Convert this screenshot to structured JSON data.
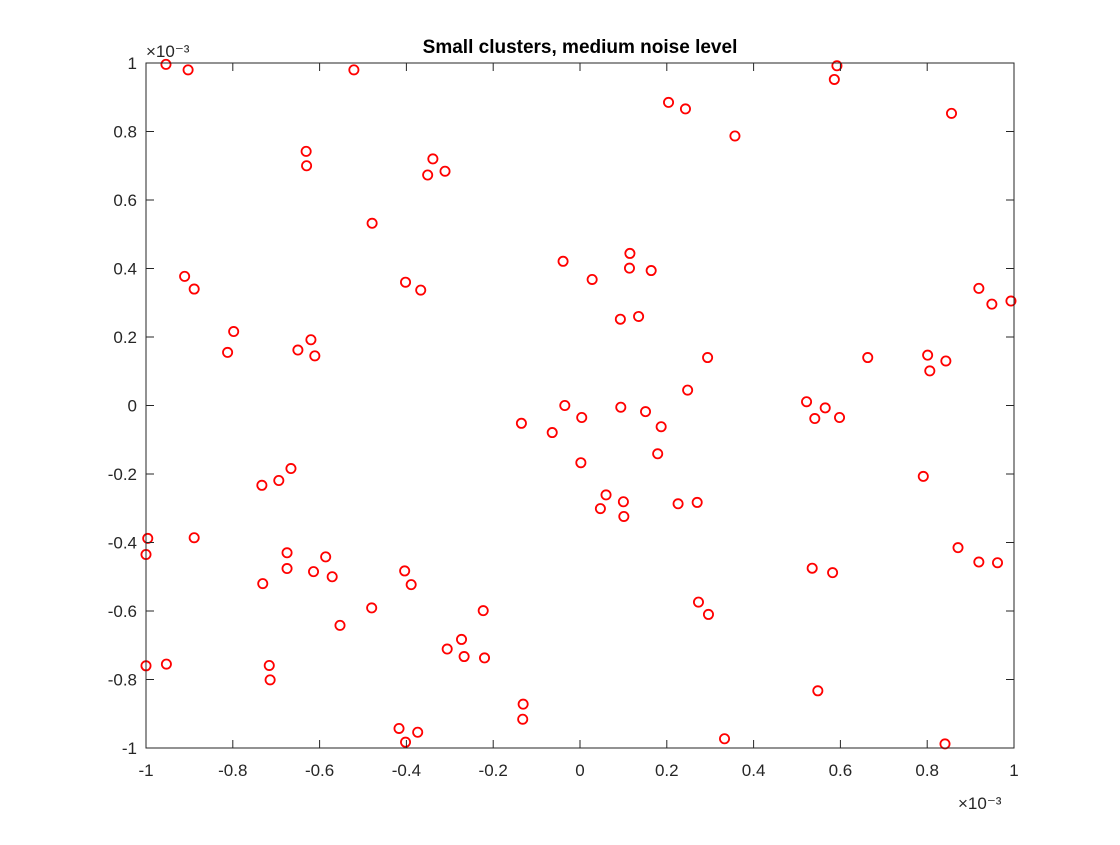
{
  "chart_data": {
    "type": "scatter",
    "title": "Small clusters, medium noise level",
    "xlabel": "",
    "ylabel": "",
    "xlim": [
      -1,
      1
    ],
    "ylim": [
      -1,
      1
    ],
    "x_exponent_label": "×10⁻³",
    "y_exponent_label": "×10⁻³",
    "x_ticks": [
      -1,
      -0.8,
      -0.6,
      -0.4,
      -0.2,
      0,
      0.2,
      0.4,
      0.6,
      0.8,
      1
    ],
    "y_ticks": [
      -1,
      -0.8,
      -0.6,
      -0.4,
      -0.2,
      0,
      0.2,
      0.4,
      0.6,
      0.8,
      1
    ],
    "x_tick_labels": [
      "-1",
      "-0.8",
      "-0.6",
      "-0.4",
      "-0.2",
      "0",
      "0.2",
      "0.4",
      "0.6",
      "0.8",
      "1"
    ],
    "y_tick_labels": [
      "-1",
      "-0.8",
      "-0.6",
      "-0.4",
      "-0.2",
      "0",
      "0.2",
      "0.4",
      "0.6",
      "0.8",
      "1"
    ],
    "grid": false,
    "marker": "circle",
    "marker_color": "#ff0000",
    "series": [
      {
        "points": [
          [
            -0.954,
            0.996
          ],
          [
            -0.903,
            0.98
          ],
          [
            -0.521,
            0.98
          ],
          [
            0.592,
            0.992
          ],
          [
            0.586,
            0.952
          ],
          [
            0.856,
            0.853
          ],
          [
            0.204,
            0.885
          ],
          [
            0.243,
            0.866
          ],
          [
            0.357,
            0.787
          ],
          [
            -0.631,
            0.742
          ],
          [
            -0.63,
            0.7
          ],
          [
            -0.339,
            0.72
          ],
          [
            -0.351,
            0.673
          ],
          [
            -0.311,
            0.684
          ],
          [
            -0.479,
            0.532
          ],
          [
            -0.911,
            0.377
          ],
          [
            -0.889,
            0.34
          ],
          [
            -0.402,
            0.36
          ],
          [
            -0.367,
            0.337
          ],
          [
            -0.039,
            0.421
          ],
          [
            0.028,
            0.368
          ],
          [
            0.115,
            0.444
          ],
          [
            0.114,
            0.401
          ],
          [
            0.164,
            0.394
          ],
          [
            0.093,
            0.252
          ],
          [
            0.135,
            0.26
          ],
          [
            0.919,
            0.342
          ],
          [
            0.949,
            0.296
          ],
          [
            0.993,
            0.305
          ],
          [
            -0.798,
            0.216
          ],
          [
            -0.812,
            0.155
          ],
          [
            -0.65,
            0.162
          ],
          [
            -0.62,
            0.192
          ],
          [
            -0.611,
            0.145
          ],
          [
            0.294,
            0.14
          ],
          [
            0.663,
            0.14
          ],
          [
            0.801,
            0.147
          ],
          [
            0.806,
            0.101
          ],
          [
            0.843,
            0.13
          ],
          [
            0.248,
            0.045
          ],
          [
            0.522,
            0.011
          ],
          [
            0.541,
            -0.038
          ],
          [
            0.565,
            -0.007
          ],
          [
            0.598,
            -0.035
          ],
          [
            -0.135,
            -0.052
          ],
          [
            -0.064,
            -0.079
          ],
          [
            -0.035,
            0
          ],
          [
            0.004,
            -0.035
          ],
          [
            0.094,
            -0.005
          ],
          [
            0.151,
            -0.018
          ],
          [
            0.187,
            -0.062
          ],
          [
            0.179,
            -0.141
          ],
          [
            0.002,
            -0.167
          ],
          [
            0.06,
            -0.261
          ],
          [
            0.1,
            -0.281
          ],
          [
            0.047,
            -0.301
          ],
          [
            0.101,
            -0.324
          ],
          [
            0.226,
            -0.287
          ],
          [
            0.27,
            -0.283
          ],
          [
            -0.666,
            -0.184
          ],
          [
            -0.694,
            -0.219
          ],
          [
            -0.733,
            -0.233
          ],
          [
            0.791,
            -0.207
          ],
          [
            -0.996,
            -0.388
          ],
          [
            -1.0,
            -0.435
          ],
          [
            -0.889,
            -0.386
          ],
          [
            -0.675,
            -0.43
          ],
          [
            -0.675,
            -0.476
          ],
          [
            -0.731,
            -0.52
          ],
          [
            -0.586,
            -0.442
          ],
          [
            -0.614,
            -0.485
          ],
          [
            -0.571,
            -0.5
          ],
          [
            -0.404,
            -0.483
          ],
          [
            -0.389,
            -0.523
          ],
          [
            -0.48,
            -0.591
          ],
          [
            -0.553,
            -0.642
          ],
          [
            0.535,
            -0.475
          ],
          [
            0.582,
            -0.488
          ],
          [
            0.871,
            -0.415
          ],
          [
            0.919,
            -0.457
          ],
          [
            0.962,
            -0.459
          ],
          [
            0.273,
            -0.574
          ],
          [
            0.296,
            -0.61
          ],
          [
            -0.223,
            -0.599
          ],
          [
            -0.306,
            -0.711
          ],
          [
            -0.273,
            -0.683
          ],
          [
            -0.267,
            -0.733
          ],
          [
            -0.22,
            -0.737
          ],
          [
            -1.0,
            -0.76
          ],
          [
            -0.953,
            -0.755
          ],
          [
            -0.716,
            -0.759
          ],
          [
            -0.714,
            -0.801
          ],
          [
            0.548,
            -0.833
          ],
          [
            -0.131,
            -0.872
          ],
          [
            -0.132,
            -0.916
          ],
          [
            -0.417,
            -0.943
          ],
          [
            -0.374,
            -0.954
          ],
          [
            -0.402,
            -0.983
          ],
          [
            0.333,
            -0.973
          ],
          [
            0.841,
            -0.988
          ]
        ]
      }
    ]
  }
}
